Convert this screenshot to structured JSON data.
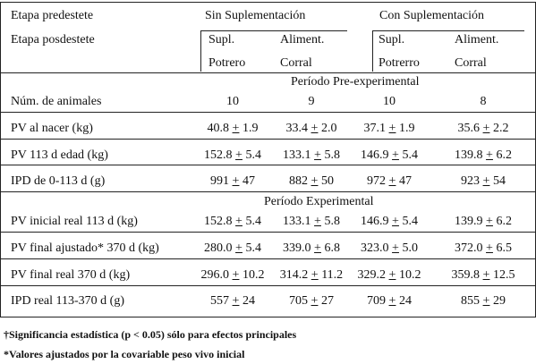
{
  "header": {
    "row1_label": "Etapa predestete",
    "row2_label": "Etapa posdestete",
    "sin": "Sin Suplementación",
    "con": "Con Suplementación",
    "cols": [
      {
        "top": "Supl.",
        "bottom": "Potrero"
      },
      {
        "top": "Aliment.",
        "bottom": "Corral"
      },
      {
        "top": "Supl.",
        "bottom": "Potrerro"
      },
      {
        "top": "Aliment.",
        "bottom": "Corral"
      }
    ]
  },
  "sections": {
    "pre": "Período Pre-experimental",
    "exp": "Período Experimental"
  },
  "rows": [
    {
      "label": "Núm. de animales",
      "cells": [
        {
          "v": "10",
          "pm": "",
          "e": ""
        },
        {
          "v": "9",
          "pm": "",
          "e": ""
        },
        {
          "v": "10",
          "pm": "",
          "e": ""
        },
        {
          "v": "8",
          "pm": "",
          "e": ""
        }
      ]
    },
    {
      "label": "PV al nacer (kg)",
      "cells": [
        {
          "v": "40.8",
          "pm": "+",
          "e": "1.9"
        },
        {
          "v": "33.4",
          "pm": "+",
          "e": "2.0"
        },
        {
          "v": "37.1",
          "pm": "+",
          "e": "1.9"
        },
        {
          "v": "35.6",
          "pm": "+",
          "e": "2.2"
        }
      ]
    },
    {
      "label": "PV 113 d edad (kg)",
      "cells": [
        {
          "v": "152.8",
          "pm": "+",
          "e": "5.4"
        },
        {
          "v": "133.1",
          "pm": "+",
          "e": "5.8"
        },
        {
          "v": "146.9",
          "pm": "+",
          "e": "5.4"
        },
        {
          "v": "139.8",
          "pm": "+",
          "e": "6.2"
        }
      ]
    },
    {
      "label": "IPD de 0-113 d (g)",
      "cells": [
        {
          "v": "991",
          "pm": "+",
          "e": "47"
        },
        {
          "v": "882",
          "pm": "+",
          "e": "50"
        },
        {
          "v": "972",
          "pm": "+",
          "e": "47"
        },
        {
          "v": "923",
          "pm": "+",
          "e": "54"
        }
      ]
    },
    {
      "label": "PV inicial real 113 d (kg)",
      "cells": [
        {
          "v": "152.8",
          "pm": "+",
          "e": "5.4"
        },
        {
          "v": "133.1",
          "pm": "+",
          "e": "5.8"
        },
        {
          "v": "146.9",
          "pm": "+",
          "e": "5.4"
        },
        {
          "v": "139.9",
          "pm": "+",
          "e": "6.2"
        }
      ]
    },
    {
      "label": "PV final ajustado* 370 d (kg)",
      "cells": [
        {
          "v": "280.0",
          "pm": "+",
          "e": "5.4"
        },
        {
          "v": "339.0",
          "pm": "+",
          "e": "6.8"
        },
        {
          "v": "323.0",
          "pm": "+",
          "e": "5.0"
        },
        {
          "v": "372.0",
          "pm": "+",
          "e": "6.5"
        }
      ]
    },
    {
      "label": "PV final real 370 d (kg)",
      "cells": [
        {
          "v": "296.0",
          "pm": "+",
          "e": "10.2"
        },
        {
          "v": "314.2",
          "pm": "+",
          "e": "11.2"
        },
        {
          "v": "329.2",
          "pm": "+",
          "e": "10.2"
        },
        {
          "v": "359.8",
          "pm": "+",
          "e": "12.5"
        }
      ]
    },
    {
      "label": "IPD real 113-370 d (g)",
      "cells": [
        {
          "v": "557",
          "pm": "+",
          "e": "24"
        },
        {
          "v": "705",
          "pm": "+",
          "e": "27"
        },
        {
          "v": "709",
          "pm": "+",
          "e": "24"
        },
        {
          "v": "855",
          "pm": "+",
          "e": "29"
        }
      ]
    }
  ],
  "notes": [
    "†Significancia estadística (p < 0.05) sólo para efectos principales",
    "*Valores ajustados por  la covariable peso vivo inicial"
  ]
}
